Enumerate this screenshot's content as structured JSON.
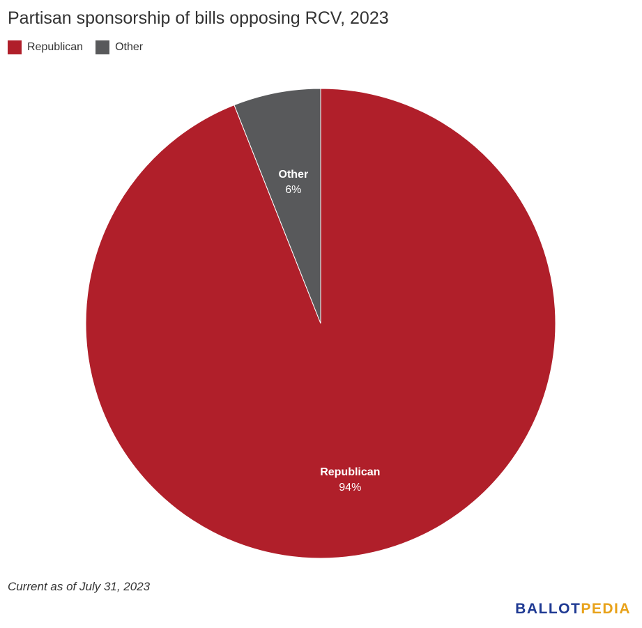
{
  "chart_data": {
    "type": "pie",
    "title": "Partisan sponsorship of bills opposing RCV, 2023",
    "legend_position": "top-left",
    "slices": [
      {
        "name": "Republican",
        "value": 94,
        "label": "94%",
        "color": "#b01f2a"
      },
      {
        "name": "Other",
        "value": 6,
        "label": "6%",
        "color": "#58595b"
      }
    ]
  },
  "footnote": "Current as of July 31, 2023",
  "logo": {
    "part_a": "BALLOT",
    "part_b": "PEDIA"
  },
  "colors": {
    "republican": "#b01f2a",
    "other": "#58595b",
    "logo_blue": "#1f3a93",
    "logo_gold": "#e8a21a"
  }
}
